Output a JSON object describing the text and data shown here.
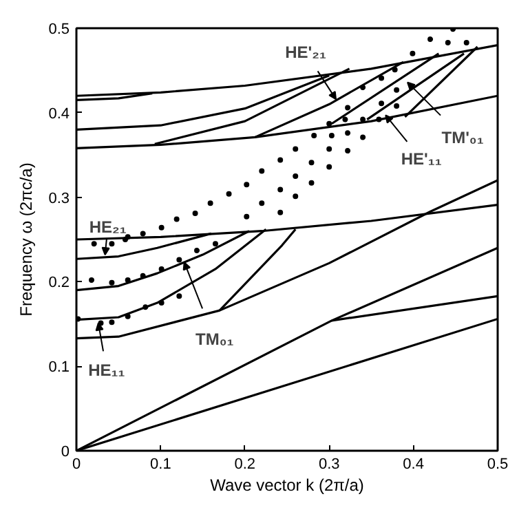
{
  "chart_data": {
    "type": "line",
    "xlabel": "Wave vector k (2π/a)",
    "ylabel": "Frequency ω (2πc/a)",
    "xlim": [
      0,
      0.5
    ],
    "ylim": [
      0,
      0.5
    ],
    "xticks": [
      0,
      0.1,
      0.2,
      0.3,
      0.4,
      0.5
    ],
    "yticks": [
      0,
      0.1,
      0.2,
      0.3,
      0.4,
      0.5
    ],
    "grid": false,
    "series": [
      {
        "color": "#000000",
        "x": [
          0,
          0.5
        ],
        "values": [
          0,
          0.156
        ]
      },
      {
        "color": "#000000",
        "x": [
          0,
          0.303,
          0.5
        ],
        "values": [
          0,
          0.154,
          0.24
        ]
      },
      {
        "color": "#000000",
        "x": [
          0.303,
          0.5
        ],
        "values": [
          0.154,
          0.183
        ]
      },
      {
        "color": "#000000",
        "x": [
          0,
          0.05,
          0.17,
          0.3,
          0.42,
          0.5
        ],
        "values": [
          0.133,
          0.135,
          0.166,
          0.222,
          0.283,
          0.32
        ]
      },
      {
        "color": "#000000",
        "x": [
          0,
          0.1,
          0.22,
          0.35,
          0.5
        ],
        "values": [
          0.25,
          0.253,
          0.26,
          0.272,
          0.291
        ]
      },
      {
        "color": "#000000",
        "x": [
          0,
          0.1,
          0.212,
          0.35,
          0.5
        ],
        "values": [
          0.358,
          0.362,
          0.371,
          0.39,
          0.42
        ]
      },
      {
        "color": "#000000",
        "x": [
          0,
          0.1,
          0.2,
          0.35,
          0.5
        ],
        "values": [
          0.42,
          0.424,
          0.432,
          0.452,
          0.48
        ]
      },
      {
        "color": "#000000",
        "x": [
          0,
          0.05,
          0.096,
          0.165,
          0.225
        ],
        "values": [
          0.155,
          0.158,
          0.175,
          0.215,
          0.262
        ]
      },
      {
        "color": "#000000",
        "x": [
          0,
          0.05,
          0.096,
          0.15,
          0.205
        ],
        "values": [
          0.19,
          0.195,
          0.21,
          0.232,
          0.26
        ]
      },
      {
        "color": "#000000",
        "x": [
          0,
          0.05,
          0.096,
          0.16
        ],
        "values": [
          0.227,
          0.23,
          0.24,
          0.257
        ]
      },
      {
        "color": "#000000",
        "x": [
          0.17,
          0.244,
          0.26
        ],
        "values": [
          0.166,
          0.243,
          0.262
        ]
      },
      {
        "color": "#000000",
        "x": [
          0,
          0.05,
          0.09
        ],
        "values": [
          0.415,
          0.417,
          0.423
        ]
      },
      {
        "color": "#000000",
        "x": [
          0,
          0.1,
          0.2,
          0.3
        ],
        "values": [
          0.38,
          0.385,
          0.405,
          0.444
        ]
      },
      {
        "color": "#000000",
        "x": [
          0.093,
          0.2,
          0.324
        ],
        "values": [
          0.363,
          0.39,
          0.452
        ]
      },
      {
        "color": "#000000",
        "x": [
          0.212,
          0.3,
          0.388
        ],
        "values": [
          0.371,
          0.41,
          0.46
        ]
      },
      {
        "color": "#000000",
        "x": [
          0.303,
          0.43
        ],
        "values": [
          0.387,
          0.47
        ]
      },
      {
        "color": "#000000",
        "x": [
          0.345,
          0.46
        ],
        "values": [
          0.392,
          0.47
        ]
      },
      {
        "color": "#000000",
        "x": [
          0.39,
          0.476
        ],
        "values": [
          0.395,
          0.478
        ]
      },
      {
        "type": "scatter",
        "marker": "circle",
        "color": "#000000",
        "x": [
          0.447,
          0.463,
          0.441,
          0.42,
          0.399,
          0.378,
          0.362,
          0.34,
          0.38,
          0.362,
          0.322,
          0.319,
          0.3,
          0.38,
          0.359,
          0.34,
          0.322,
          0.34,
          0.303,
          0.282,
          0.26,
          0.3,
          0.322,
          0.242,
          0.279,
          0.3,
          0.22,
          0.26,
          0.242,
          0.279,
          0.202,
          0.181,
          0.22,
          0.242,
          0.202,
          0.26,
          0.159,
          0.141,
          0.119,
          0.101,
          0.079,
          0.061,
          0.021,
          0.042,
          0.058,
          0.018,
          0.042,
          0.061,
          0.079,
          0.101,
          0.122,
          0.143,
          0.165,
          0.002,
          0.029,
          0.042,
          0.061,
          0.082,
          0.101,
          0.122
        ],
        "values": [
          0.499,
          0.483,
          0.483,
          0.487,
          0.47,
          0.451,
          0.441,
          0.43,
          0.427,
          0.411,
          0.406,
          0.392,
          0.387,
          0.408,
          0.392,
          0.392,
          0.376,
          0.371,
          0.373,
          0.373,
          0.357,
          0.357,
          0.355,
          0.344,
          0.341,
          0.336,
          0.331,
          0.325,
          0.309,
          0.317,
          0.315,
          0.304,
          0.293,
          0.282,
          0.277,
          0.301,
          0.293,
          0.281,
          0.274,
          0.264,
          0.257,
          0.253,
          0.245,
          0.245,
          0.25,
          0.202,
          0.199,
          0.202,
          0.207,
          0.215,
          0.226,
          0.237,
          0.245,
          0.156,
          0.151,
          0.152,
          0.159,
          0.17,
          0.175,
          0.183
        ]
      }
    ],
    "annotations": [
      {
        "text": "HE'₂₁",
        "x": 0.308,
        "y": 0.416
      },
      {
        "text": "TM'₀₁",
        "x": 0.393,
        "y": 0.436
      },
      {
        "text": "HE'₁₁",
        "x": 0.367,
        "y": 0.397
      },
      {
        "text": "HE₂₁",
        "x": 0.034,
        "y": 0.232
      },
      {
        "text": "TM₀₁",
        "x": 0.128,
        "y": 0.223
      },
      {
        "text": "HE₁₁",
        "x": 0.026,
        "y": 0.151
      }
    ]
  }
}
